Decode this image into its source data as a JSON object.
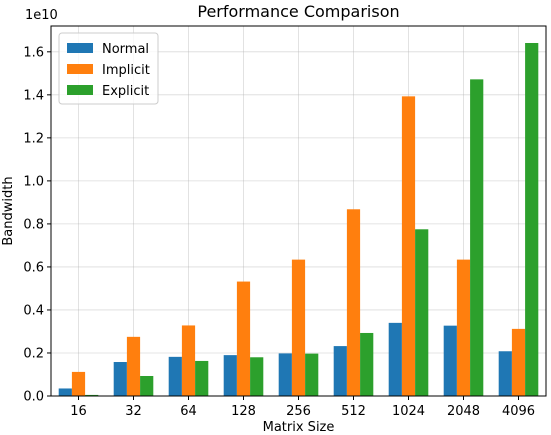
{
  "chart_data": {
    "type": "bar",
    "title": "Performance Comparison",
    "xlabel": "Matrix Size",
    "ylabel": "Bandwidth",
    "y_offset_label": "1e10",
    "categories": [
      "16",
      "32",
      "64",
      "128",
      "256",
      "512",
      "1024",
      "2048",
      "4096"
    ],
    "yticks": [
      "0.0",
      "0.2",
      "0.4",
      "0.6",
      "0.8",
      "1.0",
      "1.2",
      "1.4",
      "1.6"
    ],
    "ylim": [
      0,
      1.72
    ],
    "grid": true,
    "legend": "top-left",
    "series": [
      {
        "name": "Normal",
        "color": "#1f77b4",
        "values": [
          0.035,
          0.158,
          0.182,
          0.19,
          0.198,
          0.232,
          0.34,
          0.327,
          0.208
        ]
      },
      {
        "name": "Implicit",
        "color": "#ff7f0e",
        "values": [
          0.112,
          0.275,
          0.328,
          0.532,
          0.634,
          0.868,
          1.393,
          0.634,
          0.312
        ]
      },
      {
        "name": "Explicit",
        "color": "#2ca02c",
        "values": [
          0.005,
          0.093,
          0.163,
          0.18,
          0.197,
          0.293,
          0.775,
          1.472,
          1.641
        ]
      }
    ]
  }
}
